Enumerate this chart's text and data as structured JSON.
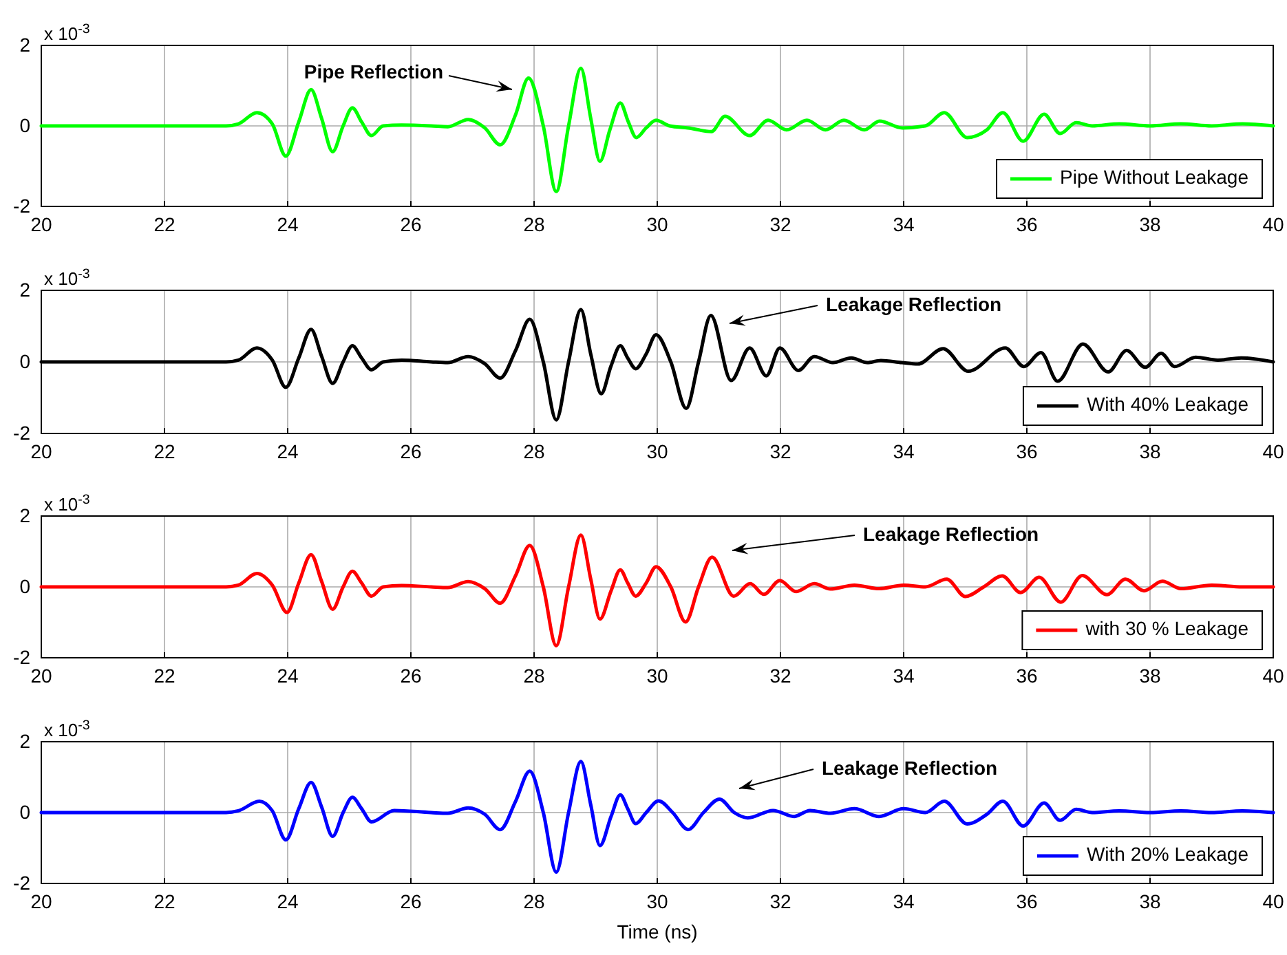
{
  "chart_data": [
    {
      "type": "line",
      "annotations": [
        "x 10$^{-3}$",
        "Pipe Reflection"
      ],
      "xlim": [
        20,
        40
      ],
      "xticks": [
        20,
        22,
        24,
        26,
        28,
        30,
        32,
        34,
        36,
        38,
        40
      ],
      "ylim": [
        -2,
        2
      ],
      "yticks": [
        -2,
        0,
        2
      ],
      "grid": true,
      "legend": "bottom right",
      "series": [
        {
          "name": "Pipe Without Leakage",
          "color": "#00ff00",
          "x": [
            20,
            22,
            23,
            23.2,
            23.5,
            23.75,
            23.97,
            24.18,
            24.38,
            24.55,
            24.73,
            24.9,
            25.05,
            25.2,
            25.36,
            25.55,
            25.85,
            26.33,
            26.6,
            26.93,
            27.2,
            27.45,
            27.7,
            27.91,
            28.15,
            28.36,
            28.56,
            28.76,
            28.92,
            29.07,
            29.23,
            29.4,
            29.53,
            29.66,
            29.82,
            29.98,
            30.2,
            30.5,
            30.88,
            31.1,
            31.5,
            31.8,
            32.1,
            32.43,
            32.73,
            33.03,
            33.36,
            33.61,
            33.98,
            34.35,
            34.66,
            35.03,
            35.35,
            35.61,
            35.94,
            36.28,
            36.54,
            36.8,
            37.06,
            37.5,
            38,
            38.5,
            39,
            39.5,
            40
          ],
          "values": [
            0,
            0,
            0,
            0.05,
            0.33,
            0.05,
            -0.75,
            0.1,
            0.9,
            0.19,
            -0.64,
            0,
            0.45,
            0.1,
            -0.24,
            0,
            0.02,
            0,
            -0.02,
            0.16,
            -0.05,
            -0.47,
            0.28,
            1.19,
            0,
            -1.63,
            0,
            1.43,
            0.19,
            -0.88,
            -0.1,
            0.57,
            0.1,
            -0.29,
            -0.05,
            0.14,
            0,
            -0.05,
            -0.14,
            0.24,
            -0.24,
            0.14,
            -0.1,
            0.14,
            -0.1,
            0.14,
            -0.1,
            0.12,
            -0.05,
            0,
            0.33,
            -0.29,
            -0.1,
            0.33,
            -0.38,
            0.29,
            -0.19,
            0.08,
            0,
            0.05,
            0,
            0.05,
            0,
            0.05,
            0
          ]
        }
      ]
    },
    {
      "type": "line",
      "annotations": [
        "x 10$^{-3}$",
        "Leakage Reflection"
      ],
      "xlim": [
        20,
        40
      ],
      "xticks": [
        20,
        22,
        24,
        26,
        28,
        30,
        32,
        34,
        36,
        38,
        40
      ],
      "ylim": [
        -2,
        2
      ],
      "yticks": [
        -2,
        0,
        2
      ],
      "grid": true,
      "legend": "bottom right",
      "series": [
        {
          "name": "With 40% Leakage",
          "color": "#000000",
          "x": [
            20,
            22,
            23,
            23.2,
            23.5,
            23.75,
            23.97,
            24.18,
            24.38,
            24.55,
            24.73,
            24.9,
            25.05,
            25.2,
            25.36,
            25.55,
            25.85,
            26.33,
            26.6,
            26.93,
            27.2,
            27.45,
            27.7,
            27.93,
            28.15,
            28.36,
            28.56,
            28.76,
            28.92,
            29.09,
            29.25,
            29.4,
            29.52,
            29.65,
            29.82,
            29.98,
            30.22,
            30.47,
            30.67,
            30.87,
            31.2,
            31.5,
            31.77,
            31.99,
            32.29,
            32.55,
            32.85,
            33.15,
            33.41,
            33.63,
            33.97,
            34.23,
            34.64,
            35.05,
            35.65,
            35.95,
            36.23,
            36.5,
            36.91,
            37.32,
            37.62,
            37.92,
            38.18,
            38.4,
            38.74,
            39.1,
            39.48,
            40
          ],
          "values": [
            0,
            0,
            0,
            0.05,
            0.39,
            0.05,
            -0.71,
            0.11,
            0.91,
            0.16,
            -0.6,
            0,
            0.45,
            0.11,
            -0.22,
            0,
            0.05,
            0,
            -0.02,
            0.15,
            -0.05,
            -0.45,
            0.32,
            1.19,
            0,
            -1.62,
            0,
            1.46,
            0.22,
            -0.89,
            -0.11,
            0.45,
            0.11,
            -0.19,
            0.22,
            0.76,
            0,
            -1.3,
            0,
            1.3,
            -0.52,
            0.39,
            -0.39,
            0.39,
            -0.24,
            0.15,
            -0.02,
            0.11,
            -0.02,
            0.04,
            -0.02,
            -0.06,
            0.37,
            -0.26,
            0.39,
            -0.13,
            0.26,
            -0.54,
            0.5,
            -0.28,
            0.32,
            -0.15,
            0.24,
            -0.13,
            0.13,
            0.05,
            0.11,
            0
          ]
        }
      ]
    },
    {
      "type": "line",
      "annotations": [
        "x 10$^{-3}$",
        "Leakage Reflection"
      ],
      "xlim": [
        20,
        40
      ],
      "xticks": [
        20,
        22,
        24,
        26,
        28,
        30,
        32,
        34,
        36,
        38,
        40
      ],
      "ylim": [
        -2,
        2
      ],
      "yticks": [
        -2,
        0,
        2
      ],
      "grid": true,
      "legend": "bottom right",
      "series": [
        {
          "name": "with 30 % Leakage",
          "color": "#ff0000",
          "x": [
            20,
            22,
            23,
            23.2,
            23.5,
            23.75,
            23.99,
            24.18,
            24.38,
            24.55,
            24.73,
            24.9,
            25.05,
            25.2,
            25.36,
            25.55,
            25.85,
            26.33,
            26.6,
            26.93,
            27.2,
            27.45,
            27.7,
            27.93,
            28.15,
            28.36,
            28.56,
            28.76,
            28.92,
            29.07,
            29.25,
            29.4,
            29.52,
            29.65,
            29.82,
            29.98,
            30.22,
            30.46,
            30.67,
            30.89,
            31.24,
            31.51,
            31.73,
            31.99,
            32.25,
            32.55,
            32.81,
            33.2,
            33.6,
            34,
            34.35,
            34.7,
            35.0,
            35.3,
            35.6,
            35.9,
            36.2,
            36.55,
            36.9,
            37.3,
            37.6,
            37.9,
            38.2,
            38.5,
            39,
            39.5,
            40
          ],
          "values": [
            0,
            0,
            0,
            0.05,
            0.38,
            0.05,
            -0.72,
            0.11,
            0.91,
            0.16,
            -0.63,
            0,
            0.44,
            0.11,
            -0.26,
            0,
            0.04,
            0,
            -0.02,
            0.15,
            -0.05,
            -0.46,
            0.32,
            1.17,
            0,
            -1.66,
            0,
            1.46,
            0.22,
            -0.91,
            -0.11,
            0.48,
            0.11,
            -0.26,
            0.11,
            0.57,
            0,
            -0.99,
            0,
            0.84,
            -0.26,
            0.09,
            -0.21,
            0.18,
            -0.13,
            0.09,
            -0.06,
            0.05,
            -0.05,
            0.05,
            0,
            0.22,
            -0.27,
            0,
            0.31,
            -0.16,
            0.27,
            -0.43,
            0.32,
            -0.22,
            0.22,
            -0.11,
            0.16,
            -0.05,
            0.05,
            0,
            0
          ]
        }
      ]
    },
    {
      "type": "line",
      "xlabel": "Time (ns)",
      "annotations": [
        "x 10$^{-3}$",
        "Leakage Reflection"
      ],
      "xlim": [
        20,
        40
      ],
      "xticks": [
        20,
        22,
        24,
        26,
        28,
        30,
        32,
        34,
        36,
        38,
        40
      ],
      "ylim": [
        -2,
        2
      ],
      "yticks": [
        -2,
        0,
        2
      ],
      "grid": true,
      "legend": "bottom right",
      "series": [
        {
          "name": "With 20% Leakage",
          "color": "#0000ff",
          "x": [
            20,
            22,
            23,
            23.2,
            23.54,
            23.75,
            23.97,
            24.18,
            24.38,
            24.55,
            24.73,
            24.9,
            25.05,
            25.2,
            25.36,
            25.73,
            26.33,
            26.6,
            26.93,
            27.2,
            27.45,
            27.7,
            27.93,
            28.15,
            28.36,
            28.56,
            28.76,
            28.92,
            29.07,
            29.25,
            29.4,
            29.52,
            29.65,
            29.82,
            30.02,
            30.25,
            30.5,
            30.75,
            31.01,
            31.25,
            31.47,
            31.88,
            32.22,
            32.48,
            32.81,
            33.2,
            33.6,
            34,
            34.35,
            34.66,
            35.03,
            35.35,
            35.61,
            35.94,
            36.28,
            36.54,
            36.8,
            37.06,
            37.5,
            38,
            38.5,
            39,
            39.5,
            40
          ],
          "values": [
            0,
            0,
            0,
            0.05,
            0.32,
            0.05,
            -0.77,
            0.11,
            0.85,
            0.16,
            -0.67,
            0,
            0.43,
            0.11,
            -0.26,
            0.06,
            0,
            -0.02,
            0.13,
            -0.05,
            -0.48,
            0.32,
            1.17,
            0,
            -1.68,
            0,
            1.44,
            0.22,
            -0.93,
            -0.11,
            0.5,
            0.11,
            -0.31,
            0,
            0.33,
            0,
            -0.48,
            0,
            0.38,
            0,
            -0.15,
            0.06,
            -0.11,
            0.06,
            -0.02,
            0.11,
            -0.11,
            0.11,
            0,
            0.32,
            -0.32,
            -0.05,
            0.32,
            -0.38,
            0.27,
            -0.22,
            0.09,
            0,
            0.05,
            0,
            0.05,
            0,
            0.05,
            0
          ]
        }
      ]
    }
  ]
}
